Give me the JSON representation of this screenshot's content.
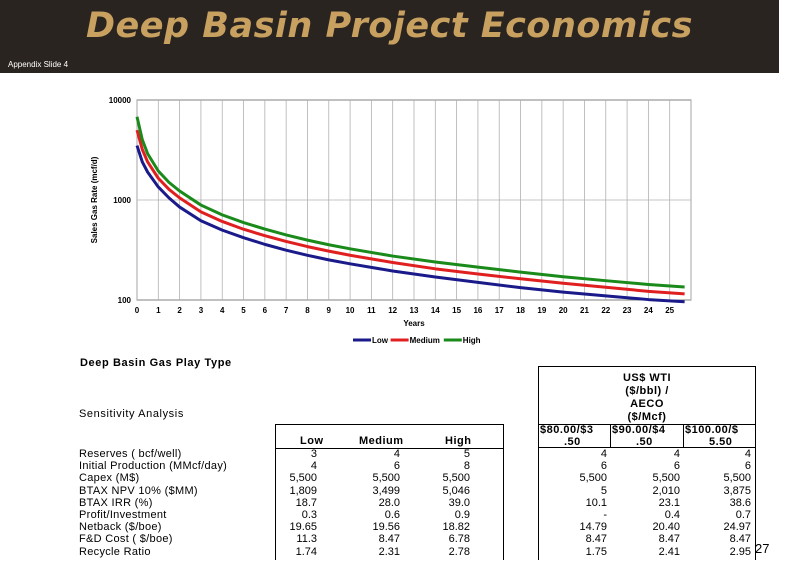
{
  "header": {
    "title": "Deep Basin Project Economics",
    "subtitle": "Appendix Slide 4"
  },
  "page_number": "27",
  "chart_data": {
    "type": "line",
    "xlabel": "Years",
    "ylabel": "Sales Gas Rate (mcf/d)",
    "y_scale": "log",
    "ylim": [
      100,
      10000
    ],
    "xlim": [
      0,
      26
    ],
    "x_ticks": [
      "0",
      "1",
      "2",
      "3",
      "4",
      "5",
      "6",
      "7",
      "8",
      "9",
      "10",
      "11",
      "12",
      "13",
      "14",
      "15",
      "16",
      "17",
      "18",
      "19",
      "20",
      "21",
      "22",
      "23",
      "24",
      "25"
    ],
    "y_ticks": [
      "100",
      "1000",
      "10000"
    ],
    "grid": true,
    "legend_position": "bottom",
    "x": [
      0,
      0.25,
      0.5,
      1,
      1.5,
      2,
      3,
      4,
      5,
      6,
      7,
      8,
      9,
      10,
      12,
      14,
      16,
      18,
      20,
      22,
      24,
      25.7
    ],
    "series": [
      {
        "name": "Low",
        "color": "#1a1a8a",
        "values": [
          3500,
          2400,
          1900,
          1350,
          1050,
          850,
          620,
          500,
          420,
          360,
          315,
          280,
          252,
          230,
          195,
          170,
          150,
          133,
          120,
          110,
          101,
          96
        ]
      },
      {
        "name": "Medium",
        "color": "#e02020",
        "values": [
          5000,
          3200,
          2400,
          1650,
          1280,
          1050,
          760,
          610,
          510,
          440,
          385,
          342,
          308,
          280,
          237,
          205,
          182,
          163,
          147,
          134,
          122,
          115
        ]
      },
      {
        "name": "High",
        "color": "#1a8a1a",
        "values": [
          6800,
          4000,
          2900,
          1950,
          1500,
          1230,
          890,
          710,
          595,
          512,
          447,
          397,
          357,
          325,
          275,
          240,
          213,
          190,
          171,
          156,
          143,
          135
        ]
      }
    ]
  },
  "table": {
    "title": "Deep Basin Gas Play Type",
    "section_label": "Sensitivity  Analysis",
    "case_headers": [
      "Low",
      "Medium",
      "High"
    ],
    "price_header": "US$ WTI ($/bbl) / AECO ($/Mcf)",
    "price_header_lines": [
      "US$ WTI",
      "($/bbl) /",
      "AECO",
      "($/Mcf)"
    ],
    "price_columns": [
      {
        "line1": "$80.00/$3",
        "line2": ".50"
      },
      {
        "line1": "$90.00/$4",
        "line2": ".50"
      },
      {
        "line1": "$100.00/$",
        "line2": "5.50"
      }
    ],
    "row_labels": [
      "Reserves ( bcf/well)",
      "Initial Production (MMcf/day)",
      "Capex (M$)",
      "BTAX NPV 10% ($MM)",
      "BTAX IRR (%)",
      "Profit/Investment",
      "Netback ($/boe)",
      "F&D Cost ( $/boe)",
      "Recycle Ratio"
    ],
    "case_values": [
      [
        "3",
        "4",
        "5"
      ],
      [
        "4",
        "6",
        "8"
      ],
      [
        "5,500",
        "5,500",
        "5,500"
      ],
      [
        "1,809",
        "3,499",
        "5,046"
      ],
      [
        "18.7",
        "28.0",
        "39.0"
      ],
      [
        "0.3",
        "0.6",
        "0.9"
      ],
      [
        "19.65",
        "19.56",
        "18.82"
      ],
      [
        "11.3",
        "8.47",
        "6.78"
      ],
      [
        "1.74",
        "2.31",
        "2.78"
      ]
    ],
    "price_values": [
      [
        "4",
        "4",
        "4"
      ],
      [
        "6",
        "6",
        "6"
      ],
      [
        "5,500",
        "5,500",
        "5,500"
      ],
      [
        "5",
        "2,010",
        "3,875"
      ],
      [
        "10.1",
        "23.1",
        "38.6"
      ],
      [
        "-",
        "0.4",
        "0.7"
      ],
      [
        "14.79",
        "20.40",
        "24.97"
      ],
      [
        "8.47",
        "8.47",
        "8.47"
      ],
      [
        "1.75",
        "2.41",
        "2.95"
      ]
    ]
  }
}
